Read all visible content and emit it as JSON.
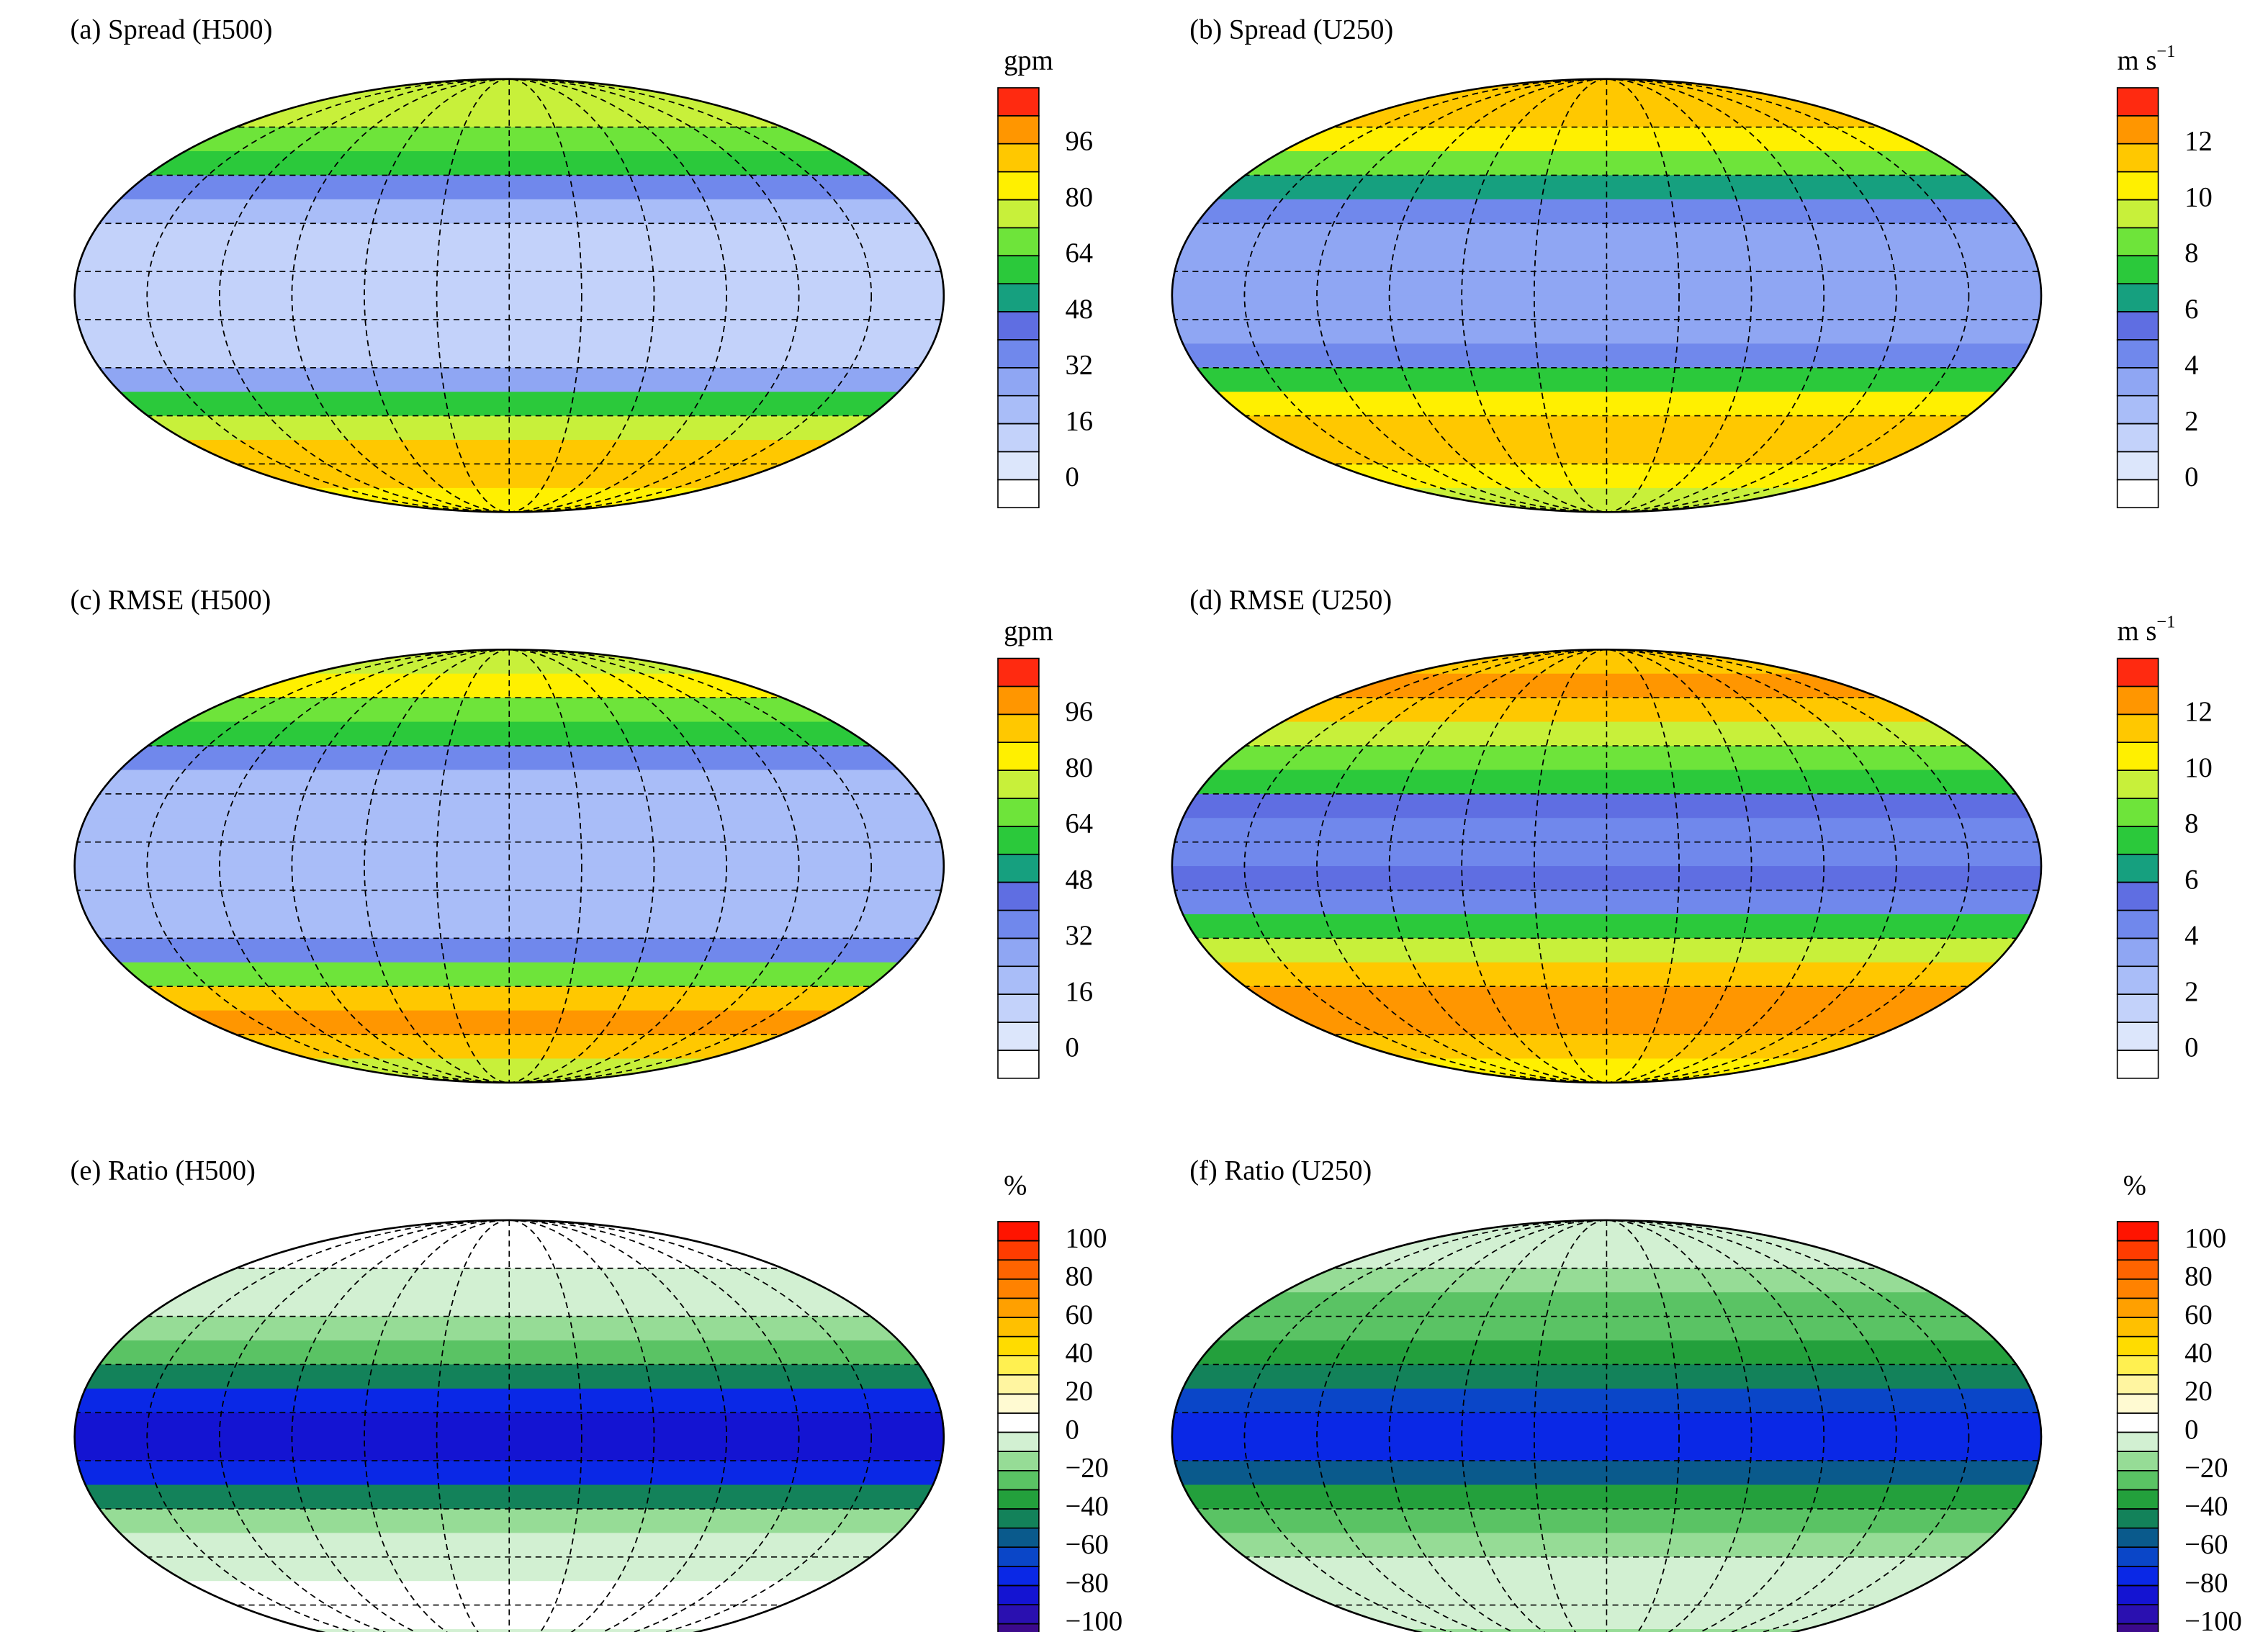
{
  "panels": [
    {
      "title": "(a) Spread (H500)",
      "unit": "gpm",
      "colorbar": {
        "ylim": [
          -8,
          112
        ],
        "yticks": [
          0,
          16,
          32,
          48,
          64,
          80,
          96
        ],
        "colors": [
          "#ffffff",
          "#dce6fb",
          "#c3d2fa",
          "#a9bdf8",
          "#8fa6f3",
          "#7088ec",
          "#5f6ee2",
          "#16a07f",
          "#2bc93b",
          "#6ee43a",
          "#c8f03a",
          "#fff000",
          "#ffc800",
          "#ff9600",
          "#ff2a10"
        ]
      }
    },
    {
      "title": "(b) Spread (U250)",
      "unit": "m s",
      "unit_superscript": "−1",
      "colorbar": {
        "ylim": [
          -1,
          14
        ],
        "yticks": [
          0,
          2,
          4,
          6,
          8,
          10,
          12
        ],
        "colors": [
          "#ffffff",
          "#dce6fb",
          "#c3d2fa",
          "#a9bdf8",
          "#8fa6f3",
          "#7088ec",
          "#5f6ee2",
          "#16a07f",
          "#2bc93b",
          "#6ee43a",
          "#c8f03a",
          "#fff000",
          "#ffc800",
          "#ff9600",
          "#ff2a10"
        ]
      }
    },
    {
      "title": "(c) RMSE (H500)",
      "unit": "gpm",
      "colorbar": {
        "ylim": [
          -8,
          112
        ],
        "yticks": [
          0,
          16,
          32,
          48,
          64,
          80,
          96
        ],
        "colors": [
          "#ffffff",
          "#dce6fb",
          "#c3d2fa",
          "#a9bdf8",
          "#8fa6f3",
          "#7088ec",
          "#5f6ee2",
          "#16a07f",
          "#2bc93b",
          "#6ee43a",
          "#c8f03a",
          "#fff000",
          "#ffc800",
          "#ff9600",
          "#ff2a10"
        ]
      }
    },
    {
      "title": "(d) RMSE (U250)",
      "unit": "m s",
      "unit_superscript": "−1",
      "colorbar": {
        "ylim": [
          -1,
          14
        ],
        "yticks": [
          0,
          2,
          4,
          6,
          8,
          10,
          12
        ],
        "colors": [
          "#ffffff",
          "#dce6fb",
          "#c3d2fa",
          "#a9bdf8",
          "#8fa6f3",
          "#7088ec",
          "#5f6ee2",
          "#16a07f",
          "#2bc93b",
          "#6ee43a",
          "#c8f03a",
          "#fff000",
          "#ffc800",
          "#ff9600",
          "#ff2a10"
        ]
      }
    },
    {
      "title": "(e) Ratio (H500)",
      "unit": "%",
      "colorbar": {
        "ylim": [
          -110,
          110
        ],
        "yticks": [
          {
            "value": -100,
            "label": "−100"
          },
          {
            "value": -80,
            "label": "−80"
          },
          {
            "value": -60,
            "label": "−60"
          },
          {
            "value": -40,
            "label": "−40"
          },
          {
            "value": -20,
            "label": "−20"
          },
          0,
          20,
          40,
          60,
          80,
          100
        ],
        "colors": [
          "#3c0a8c",
          "#2a10b0",
          "#1414d2",
          "#0a28e6",
          "#0a46c8",
          "#0a5a8c",
          "#13825a",
          "#23a03c",
          "#5ac364",
          "#96dc96",
          "#d2f0d2",
          "#ffffff",
          "#fffad2",
          "#fff5a0",
          "#fff050",
          "#ffdc00",
          "#ffc000",
          "#ffa000",
          "#ff8200",
          "#ff6400",
          "#ff3c00",
          "#ff1400"
        ]
      }
    },
    {
      "title": "(f) Ratio (U250)",
      "unit": "%",
      "colorbar": {
        "ylim": [
          -110,
          110
        ],
        "yticks": [
          {
            "value": -100,
            "label": "−100"
          },
          {
            "value": -80,
            "label": "−80"
          },
          {
            "value": -60,
            "label": "−60"
          },
          {
            "value": -40,
            "label": "−40"
          },
          {
            "value": -20,
            "label": "−20"
          },
          0,
          20,
          40,
          60,
          80,
          100
        ],
        "colors": [
          "#3c0a8c",
          "#2a10b0",
          "#1414d2",
          "#0a28e6",
          "#0a46c8",
          "#0a5a8c",
          "#13825a",
          "#23a03c",
          "#5ac364",
          "#96dc96",
          "#d2f0d2",
          "#ffffff",
          "#fffad2",
          "#fff5a0",
          "#fff050",
          "#ffdc00",
          "#ffc000",
          "#ffa000",
          "#ff8200",
          "#ff6400",
          "#ff3c00",
          "#ff1400"
        ]
      }
    }
  ]
}
